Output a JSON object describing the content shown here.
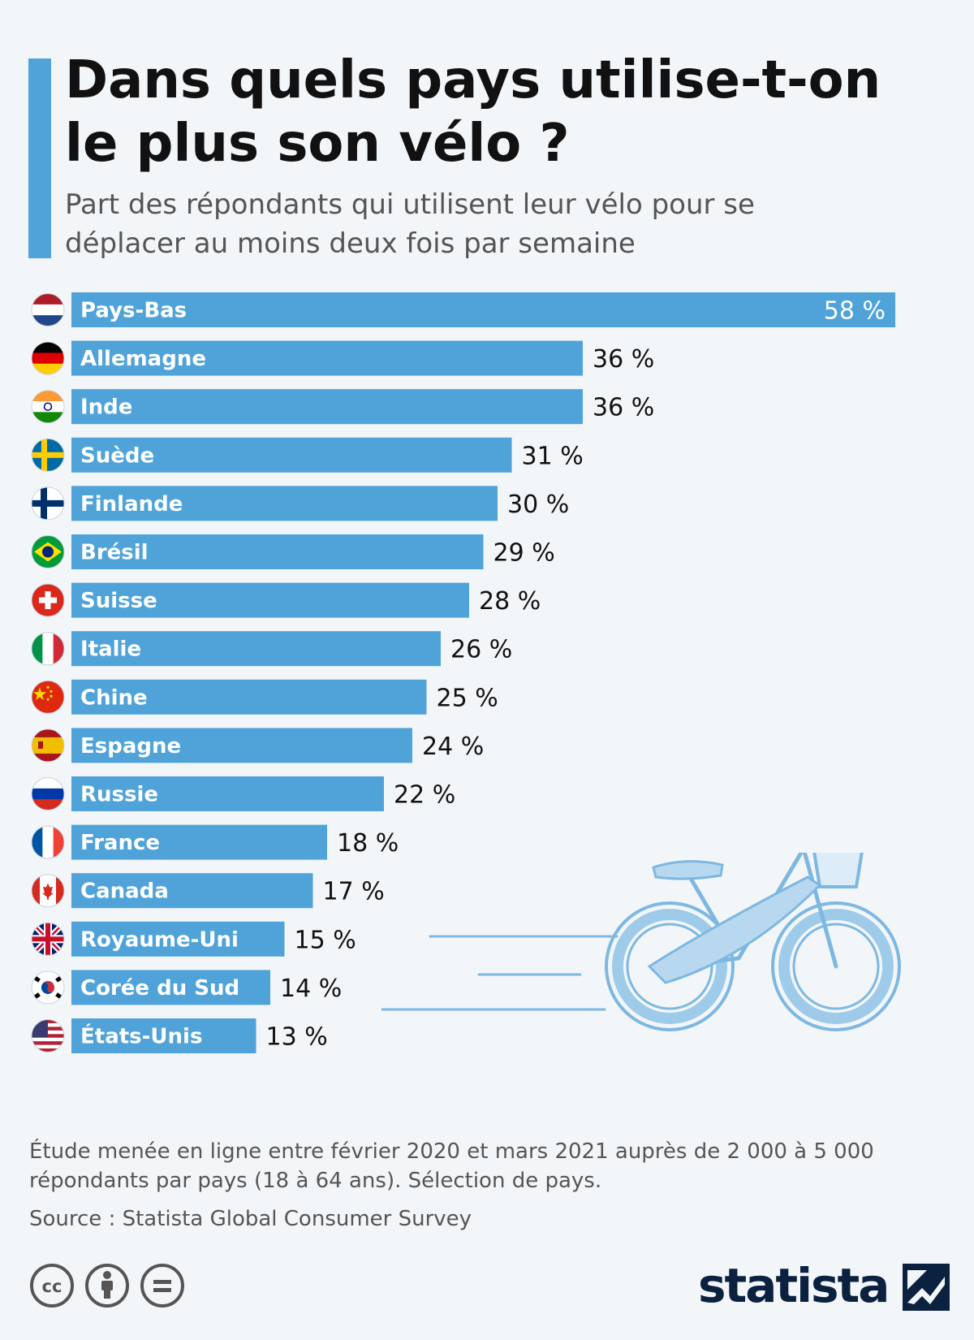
{
  "header": {
    "title": "Dans quels pays utilise-t-on le plus son vélo ?",
    "subtitle": "Part des répondants qui utilisent leur vélo pour se déplacer au moins deux fois par semaine"
  },
  "colors": {
    "bar": "#4fa3d9",
    "accent": "#4fa3d9",
    "background": "#f3f6f9",
    "logo": "#0b2140"
  },
  "chart_data": {
    "type": "bar",
    "orientation": "horizontal",
    "title": "",
    "unit": "%",
    "categories": [
      "Pays-Bas",
      "Allemagne",
      "Inde",
      "Suède",
      "Finlande",
      "Brésil",
      "Suisse",
      "Italie",
      "Chine",
      "Espagne",
      "Russie",
      "France",
      "Canada",
      "Royaume-Uni",
      "Corée du Sud",
      "États-Unis"
    ],
    "values": [
      58,
      36,
      36,
      31,
      30,
      29,
      28,
      26,
      25,
      24,
      22,
      18,
      17,
      15,
      14,
      13
    ],
    "value_labels": [
      "58 %",
      "36 %",
      "36 %",
      "31 %",
      "30 %",
      "29 %",
      "28 %",
      "26 %",
      "25 %",
      "24 %",
      "22 %",
      "18 %",
      "17 %",
      "15 %",
      "14 %",
      "13 %"
    ],
    "flags": [
      "netherlands-flag-icon",
      "germany-flag-icon",
      "india-flag-icon",
      "sweden-flag-icon",
      "finland-flag-icon",
      "brazil-flag-icon",
      "switzerland-flag-icon",
      "italy-flag-icon",
      "china-flag-icon",
      "spain-flag-icon",
      "russia-flag-icon",
      "france-flag-icon",
      "canada-flag-icon",
      "uk-flag-icon",
      "south-korea-flag-icon",
      "usa-flag-icon"
    ],
    "xlim": [
      0,
      58
    ],
    "grid": false,
    "legend": "none"
  },
  "footer": {
    "note": "Étude menée en ligne entre février 2020 et mars 2021 auprès de 2 000 à 5 000 répondants par pays (18 à 64 ans). Sélection de pays.",
    "source": "Source : Statista Global Consumer Survey",
    "license_icons": [
      "cc-icon",
      "by-attribution-icon",
      "no-derivatives-icon"
    ],
    "logo_text": "statista"
  }
}
